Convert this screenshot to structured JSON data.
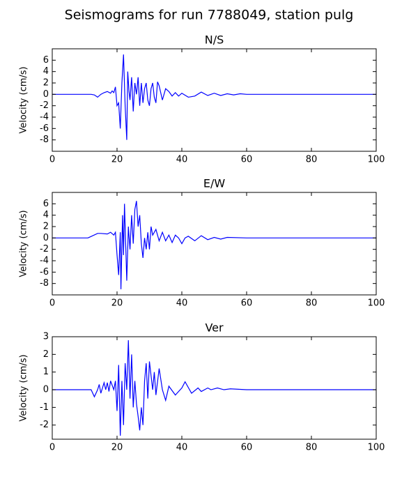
{
  "title": "Seismograms for run 7788049, station pulg",
  "chart_data": [
    {
      "type": "line",
      "title": "N/S",
      "ylabel": "Velocity (cm/s)",
      "x": [
        0,
        10,
        12,
        13,
        14,
        15,
        16,
        17,
        18,
        18.5,
        19,
        19.5,
        20,
        20.5,
        21,
        21.5,
        22,
        22.5,
        23,
        23.3,
        23.7,
        24,
        24.5,
        25,
        25.5,
        26,
        26.5,
        27,
        27.5,
        28,
        28.5,
        29,
        29.5,
        30,
        30.5,
        31,
        31.5,
        32,
        32.5,
        33,
        34,
        35,
        36,
        37,
        38,
        39,
        40,
        42,
        44,
        46,
        48,
        50,
        52,
        54,
        56,
        58,
        60,
        65,
        100
      ],
      "series": [
        {
          "color": "#0000ff",
          "values": [
            0,
            0,
            0,
            -0.1,
            -0.5,
            0,
            0.3,
            0.5,
            0.2,
            0.6,
            0.3,
            1.3,
            -2,
            -1.5,
            -6,
            2,
            7,
            -2,
            -8,
            4,
            0.5,
            -1,
            3,
            -3,
            2,
            0,
            3,
            -2,
            2,
            -1.5,
            1,
            2,
            -1,
            -2,
            1,
            2,
            -0.5,
            -1.5,
            2.2,
            1.5,
            -1,
            1,
            0.5,
            -0.3,
            0.3,
            -0.3,
            0.2,
            -0.5,
            -0.3,
            0.4,
            -0.2,
            0.2,
            -0.2,
            0.1,
            -0.1,
            0.1,
            0,
            0,
            0
          ]
        }
      ],
      "xlim": [
        0,
        100
      ],
      "xticks": [
        0,
        20,
        40,
        60,
        80,
        100
      ],
      "ylim": [
        -10,
        8
      ],
      "yticks": [
        -8,
        -6,
        -4,
        -2,
        0,
        2,
        4,
        6
      ]
    },
    {
      "type": "line",
      "title": "E/W",
      "ylabel": "Velocity (cm/s)",
      "x": [
        0,
        11,
        14,
        15,
        17,
        18,
        19,
        19.5,
        20,
        20.5,
        21,
        21.2,
        21.7,
        22,
        22.3,
        23,
        23.5,
        24,
        24.5,
        25,
        25.5,
        26,
        26.5,
        27,
        27.5,
        28,
        28.5,
        29,
        29.5,
        30,
        30.5,
        31,
        32,
        33,
        34,
        35,
        36,
        37,
        38,
        39,
        40,
        41,
        42,
        44,
        46,
        48,
        50,
        52,
        54,
        60,
        100
      ],
      "series": [
        {
          "color": "#0000ff",
          "values": [
            0,
            0,
            0.8,
            0.8,
            0.7,
            1,
            0.5,
            1,
            -3,
            -6.5,
            1,
            -9,
            4,
            -3,
            6,
            -7.5,
            2,
            -2,
            4,
            -1,
            5,
            6.5,
            2,
            4,
            -1,
            -3.5,
            0,
            -2,
            1,
            -2,
            2,
            0.5,
            1.5,
            -0.5,
            1,
            -0.5,
            0.5,
            -0.8,
            0.5,
            0,
            -1,
            0,
            0.3,
            -0.5,
            0.4,
            -0.3,
            0.1,
            -0.2,
            0.1,
            0,
            0
          ]
        }
      ],
      "xlim": [
        0,
        100
      ],
      "xticks": [
        0,
        20,
        40,
        60,
        80,
        100
      ],
      "ylim": [
        -10,
        8
      ],
      "yticks": [
        -8,
        -6,
        -4,
        -2,
        0,
        2,
        4,
        6
      ]
    },
    {
      "type": "line",
      "title": "Ver",
      "ylabel": "Velocity (cm/s)",
      "x": [
        0,
        12,
        13,
        14,
        14.5,
        15,
        16,
        16.5,
        17,
        17.5,
        18,
        19,
        19.5,
        20,
        20.5,
        21,
        21.5,
        22,
        22.5,
        23,
        23.5,
        24,
        24.5,
        25,
        25.5,
        26,
        26.5,
        27,
        27.5,
        28,
        28.5,
        29,
        29.5,
        30,
        31,
        31.5,
        32,
        33,
        34,
        35,
        36,
        38,
        40,
        41,
        43,
        45,
        46,
        48,
        49,
        51,
        53,
        55,
        60,
        100
      ],
      "series": [
        {
          "color": "#0000ff",
          "values": [
            0,
            0,
            -0.4,
            0,
            0.3,
            -0.2,
            0.4,
            0,
            0.4,
            -0.1,
            0.5,
            0,
            0.5,
            -1.2,
            1.4,
            -2.6,
            0.5,
            -2,
            1.5,
            0,
            2.8,
            -0.5,
            2,
            -1,
            0.5,
            -0.8,
            -1.5,
            -2.3,
            -1,
            -2,
            0.5,
            1.5,
            -0.5,
            1.6,
            0,
            1,
            -0.3,
            1.2,
            0,
            -0.6,
            0.2,
            -0.3,
            0.1,
            0.45,
            -0.2,
            0.1,
            -0.1,
            0.1,
            0,
            0.1,
            0,
            0.05,
            0,
            0
          ]
        }
      ],
      "xlim": [
        0,
        100
      ],
      "xticks": [
        0,
        20,
        40,
        60,
        80,
        100
      ],
      "ylim": [
        -2.8,
        3.0
      ],
      "yticks": [
        -2,
        -1,
        0,
        1,
        2,
        3
      ]
    }
  ]
}
